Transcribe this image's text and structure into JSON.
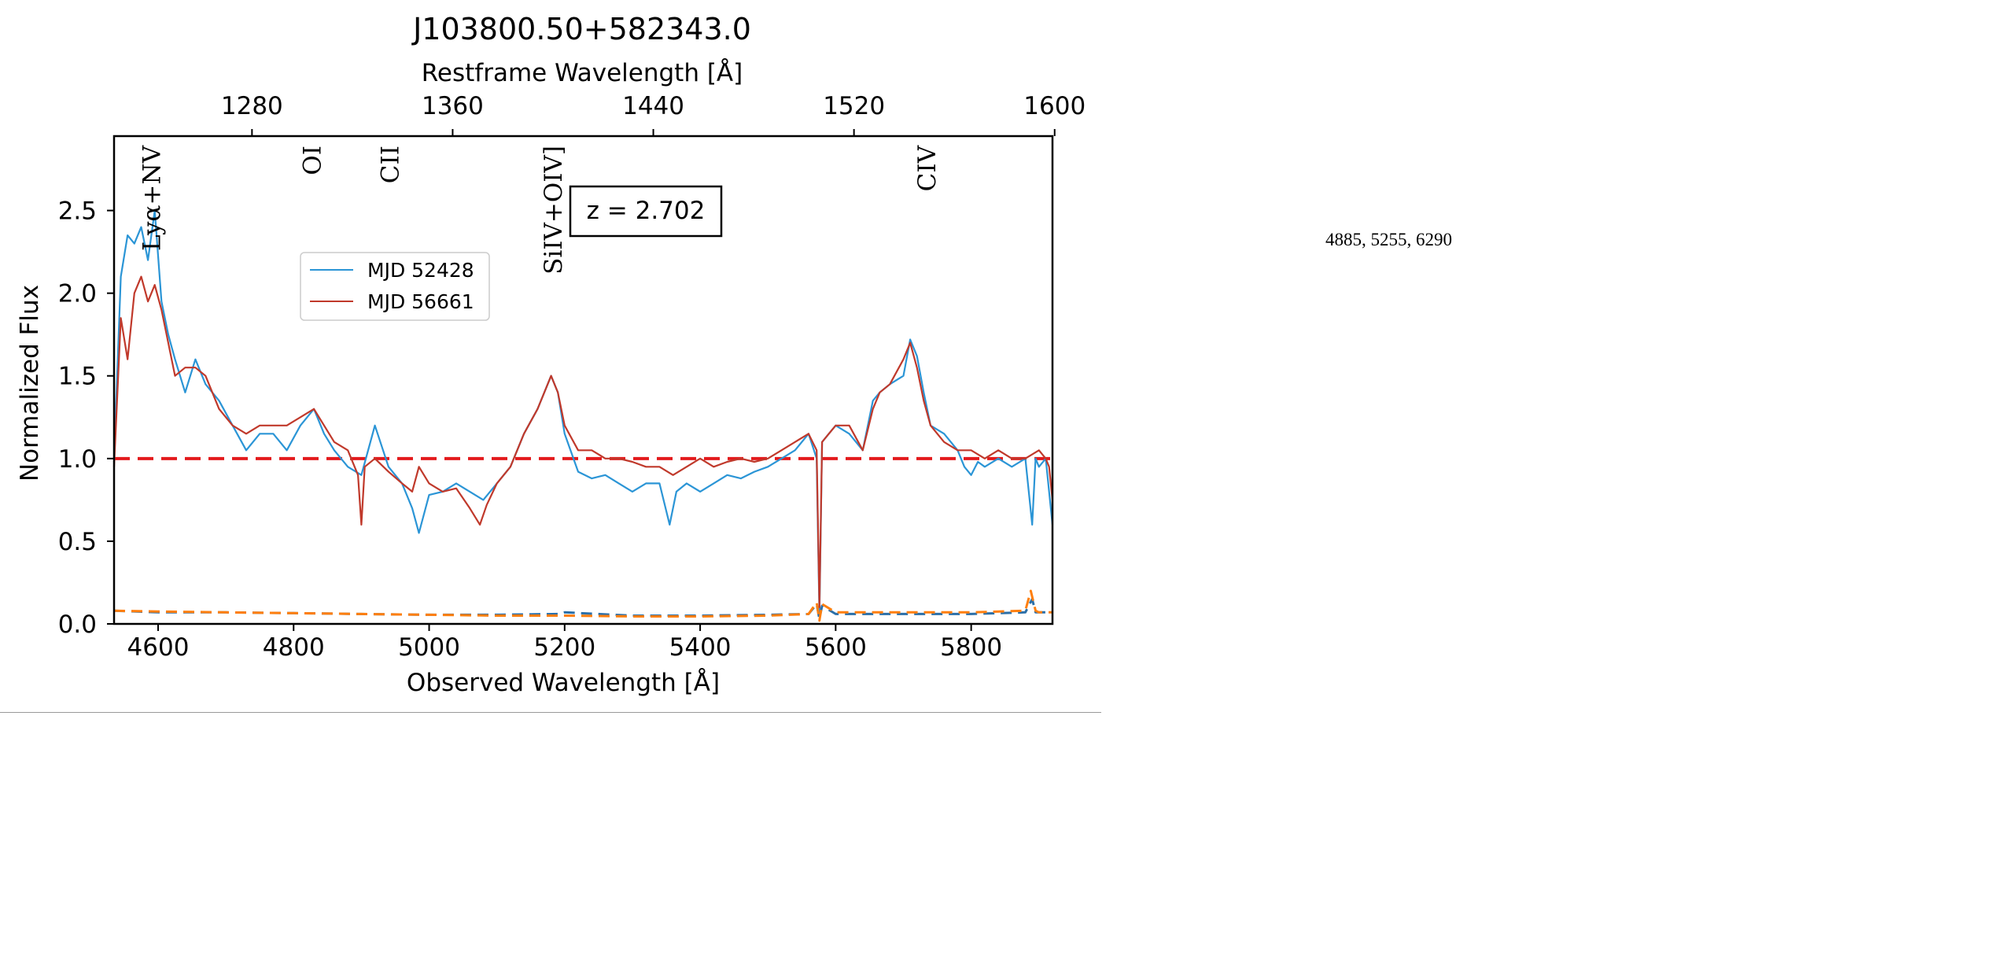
{
  "side_note": "4885, 5255, 6290",
  "colors": {
    "epoch1": "#2b95d6",
    "epoch2": "#c0392b",
    "unity": "#e31a1c",
    "error1": "#2b6fa8",
    "error2": "#ff7f0e"
  },
  "chart_data": {
    "type": "line",
    "title": "J103800.50+582343.0",
    "xlabel": "Observed Wavelength [Å]",
    "ylabel": "Normalized Flux",
    "top_xlabel": "Restframe Wavelength [Å]",
    "redshift_label": "z = 2.702",
    "z": 2.702,
    "xlim": [
      4535,
      5920
    ],
    "ylim": [
      0,
      2.95
    ],
    "xticks": [
      4600,
      4800,
      5000,
      5200,
      5400,
      5600,
      5800
    ],
    "xtick_labels": [
      "4600",
      "4800",
      "5000",
      "5200",
      "5400",
      "5600",
      "5800"
    ],
    "yticks": [
      0,
      0.5,
      1.0,
      1.5,
      2.0,
      2.5
    ],
    "ytick_labels": [
      "0.0",
      "0.5",
      "1.0",
      "1.5",
      "2.0",
      "2.5"
    ],
    "top_ticks_rest": [
      1280,
      1360,
      1440,
      1520,
      1600
    ],
    "top_tick_labels": [
      "1280",
      "1360",
      "1440",
      "1520",
      "1600"
    ],
    "legend_position": "upper-left-center",
    "grid": false,
    "line_labels": [
      {
        "text": "Lyα+NV",
        "rest_wavelength": 1240
      },
      {
        "text": "OI",
        "rest_wavelength": 1304
      },
      {
        "text": "CII",
        "rest_wavelength": 1335
      },
      {
        "text": "SiIV+OIV]",
        "rest_wavelength": 1400
      },
      {
        "text": "CIV",
        "rest_wavelength": 1549
      }
    ],
    "reference_line": {
      "y": 1.0,
      "style": "dashed"
    },
    "series": [
      {
        "name": "MJD 52428",
        "x": [
          4535,
          4545,
          4555,
          4565,
          4575,
          4585,
          4595,
          4605,
          4615,
          4625,
          4640,
          4655,
          4670,
          4690,
          4710,
          4730,
          4750,
          4770,
          4790,
          4810,
          4830,
          4845,
          4860,
          4880,
          4900,
          4920,
          4940,
          4960,
          4975,
          4985,
          5000,
          5020,
          5040,
          5060,
          5080,
          5100,
          5120,
          5140,
          5160,
          5180,
          5190,
          5200,
          5220,
          5240,
          5260,
          5280,
          5300,
          5320,
          5340,
          5355,
          5365,
          5380,
          5400,
          5420,
          5440,
          5460,
          5480,
          5500,
          5520,
          5540,
          5560,
          5572,
          5576,
          5580,
          5590,
          5600,
          5620,
          5640,
          5655,
          5665,
          5680,
          5700,
          5710,
          5720,
          5730,
          5740,
          5760,
          5780,
          5790,
          5800,
          5810,
          5820,
          5840,
          5860,
          5880,
          5890,
          5895,
          5900,
          5910,
          5920
        ],
        "y": [
          1.0,
          2.1,
          2.35,
          2.3,
          2.4,
          2.2,
          2.5,
          1.95,
          1.75,
          1.6,
          1.4,
          1.6,
          1.45,
          1.35,
          1.2,
          1.05,
          1.15,
          1.15,
          1.05,
          1.2,
          1.3,
          1.15,
          1.05,
          0.95,
          0.9,
          1.2,
          0.95,
          0.85,
          0.7,
          0.55,
          0.78,
          0.8,
          0.85,
          0.8,
          0.75,
          0.85,
          0.95,
          1.15,
          1.3,
          1.5,
          1.4,
          1.15,
          0.92,
          0.88,
          0.9,
          0.85,
          0.8,
          0.85,
          0.85,
          0.6,
          0.8,
          0.85,
          0.8,
          0.85,
          0.9,
          0.88,
          0.92,
          0.95,
          1.0,
          1.05,
          1.15,
          1.0,
          0.05,
          1.1,
          1.15,
          1.2,
          1.15,
          1.05,
          1.35,
          1.4,
          1.45,
          1.5,
          1.72,
          1.62,
          1.4,
          1.2,
          1.15,
          1.05,
          0.95,
          0.9,
          0.98,
          0.95,
          1.0,
          0.95,
          1.0,
          0.6,
          1.0,
          0.95,
          1.0,
          0.6
        ]
      },
      {
        "name": "MJD 56661",
        "x": [
          4535,
          4545,
          4555,
          4565,
          4575,
          4585,
          4595,
          4605,
          4615,
          4625,
          4640,
          4655,
          4670,
          4690,
          4710,
          4730,
          4750,
          4770,
          4790,
          4810,
          4830,
          4845,
          4860,
          4880,
          4895,
          4900,
          4905,
          4920,
          4940,
          4960,
          4975,
          4985,
          5000,
          5020,
          5040,
          5060,
          5075,
          5085,
          5100,
          5120,
          5140,
          5160,
          5180,
          5190,
          5200,
          5220,
          5240,
          5260,
          5280,
          5300,
          5320,
          5340,
          5360,
          5380,
          5400,
          5420,
          5440,
          5460,
          5480,
          5500,
          5520,
          5540,
          5560,
          5572,
          5576,
          5580,
          5590,
          5600,
          5620,
          5640,
          5655,
          5665,
          5680,
          5700,
          5710,
          5720,
          5730,
          5740,
          5760,
          5780,
          5800,
          5820,
          5840,
          5860,
          5880,
          5900,
          5910,
          5915,
          5920
        ],
        "y": [
          0.95,
          1.85,
          1.6,
          2.0,
          2.1,
          1.95,
          2.05,
          1.9,
          1.7,
          1.5,
          1.55,
          1.55,
          1.5,
          1.3,
          1.2,
          1.15,
          1.2,
          1.2,
          1.2,
          1.25,
          1.3,
          1.2,
          1.1,
          1.05,
          0.9,
          0.6,
          0.95,
          1.0,
          0.92,
          0.85,
          0.8,
          0.95,
          0.85,
          0.8,
          0.82,
          0.7,
          0.6,
          0.72,
          0.85,
          0.95,
          1.15,
          1.3,
          1.5,
          1.4,
          1.2,
          1.05,
          1.05,
          1.0,
          1.0,
          0.98,
          0.95,
          0.95,
          0.9,
          0.95,
          1.0,
          0.95,
          0.98,
          1.0,
          0.98,
          1.0,
          1.05,
          1.1,
          1.15,
          1.05,
          0.1,
          1.1,
          1.15,
          1.2,
          1.2,
          1.05,
          1.3,
          1.4,
          1.45,
          1.6,
          1.7,
          1.55,
          1.35,
          1.2,
          1.1,
          1.05,
          1.05,
          1.0,
          1.05,
          1.0,
          1.0,
          1.05,
          1.0,
          0.95,
          0.75
        ]
      },
      {
        "name": "",
        "style": "dashed",
        "x": [
          4535,
          4600,
          4700,
          4800,
          4900,
          5000,
          5100,
          5190,
          5200,
          5300,
          5400,
          5500,
          5560,
          5572,
          5576,
          5580,
          5600,
          5700,
          5800,
          5880,
          5890,
          5895,
          5900,
          5920
        ],
        "y": [
          0.08,
          0.07,
          0.07,
          0.065,
          0.06,
          0.055,
          0.055,
          0.06,
          0.07,
          0.05,
          0.05,
          0.055,
          0.06,
          0.12,
          0.03,
          0.11,
          0.06,
          0.06,
          0.06,
          0.07,
          0.15,
          0.07,
          0.07,
          0.07
        ]
      },
      {
        "name": "",
        "style": "dashed",
        "x": [
          4535,
          4600,
          4700,
          4800,
          4900,
          5000,
          5100,
          5200,
          5300,
          5400,
          5500,
          5560,
          5572,
          5576,
          5580,
          5600,
          5700,
          5800,
          5880,
          5888,
          5895,
          5900,
          5920
        ],
        "y": [
          0.08,
          0.075,
          0.07,
          0.065,
          0.06,
          0.055,
          0.05,
          0.05,
          0.045,
          0.045,
          0.05,
          0.06,
          0.13,
          0.02,
          0.12,
          0.07,
          0.07,
          0.07,
          0.08,
          0.2,
          0.08,
          0.07,
          0.07
        ]
      }
    ]
  }
}
